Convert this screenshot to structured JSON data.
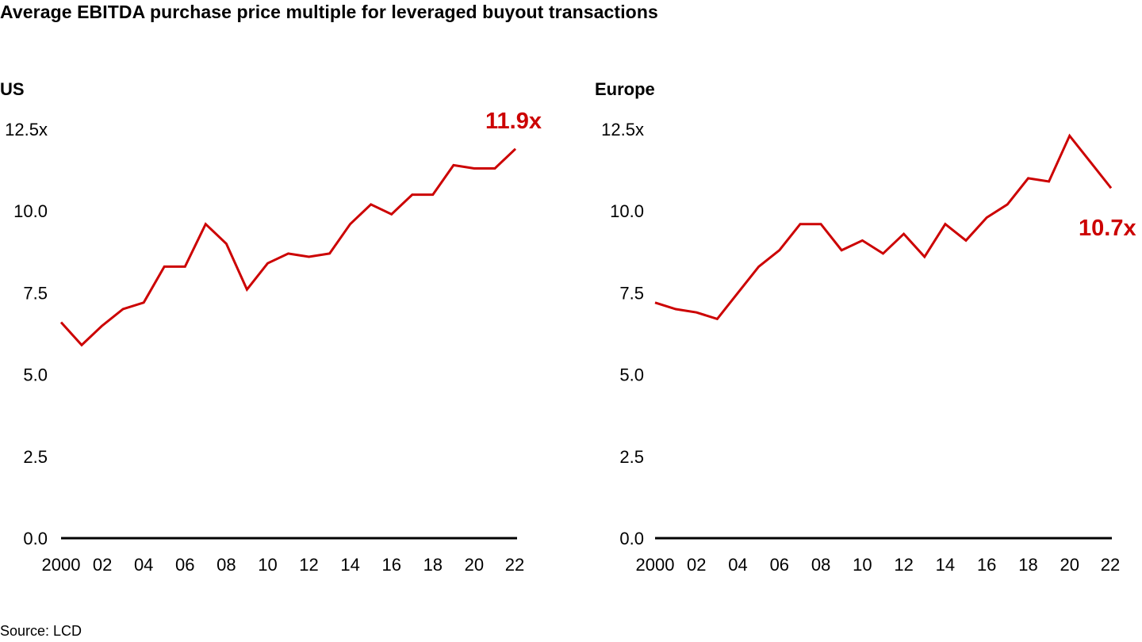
{
  "title": "Average EBITDA purchase price multiple for leveraged buyout transactions",
  "source": "Source: LCD",
  "colors": {
    "series": "#cc0000",
    "axis": "#000000",
    "text": "#000000"
  },
  "chart_data": [
    {
      "type": "line",
      "title": "US",
      "x": [
        2000,
        2001,
        2002,
        2003,
        2004,
        2005,
        2006,
        2007,
        2008,
        2009,
        2010,
        2011,
        2012,
        2013,
        2014,
        2015,
        2016,
        2017,
        2018,
        2019,
        2020,
        2021,
        2022
      ],
      "x_tick_labels": [
        "2000",
        "02",
        "04",
        "06",
        "08",
        "10",
        "12",
        "14",
        "16",
        "18",
        "20",
        "22"
      ],
      "y_tick_labels": [
        "0.0",
        "2.5",
        "5.0",
        "7.5",
        "10.0",
        "12.5x"
      ],
      "ylim": [
        0,
        12.5
      ],
      "grid": false,
      "series": [
        {
          "values": [
            6.6,
            5.9,
            6.5,
            7.0,
            7.2,
            8.3,
            8.3,
            9.6,
            9.0,
            7.6,
            8.4,
            8.7,
            8.6,
            8.7,
            9.6,
            10.2,
            9.9,
            10.5,
            10.5,
            11.4,
            11.3,
            11.3,
            11.9
          ]
        }
      ],
      "end_label": "11.9x"
    },
    {
      "type": "line",
      "title": "Europe",
      "x": [
        2000,
        2001,
        2002,
        2003,
        2004,
        2005,
        2006,
        2007,
        2008,
        2009,
        2010,
        2011,
        2012,
        2013,
        2014,
        2015,
        2016,
        2017,
        2018,
        2019,
        2020,
        2021,
        2022
      ],
      "x_tick_labels": [
        "2000",
        "02",
        "04",
        "06",
        "08",
        "10",
        "12",
        "14",
        "16",
        "18",
        "20",
        "22"
      ],
      "y_tick_labels": [
        "0.0",
        "2.5",
        "5.0",
        "7.5",
        "10.0",
        "12.5x"
      ],
      "ylim": [
        0,
        12.5
      ],
      "grid": false,
      "series": [
        {
          "values": [
            7.2,
            7.0,
            6.9,
            6.7,
            7.5,
            8.3,
            8.8,
            9.6,
            9.6,
            8.8,
            9.1,
            8.7,
            9.3,
            8.6,
            9.6,
            9.1,
            9.8,
            10.2,
            11.0,
            10.9,
            12.3,
            11.5,
            10.7
          ]
        }
      ],
      "end_label": "10.7x"
    }
  ]
}
